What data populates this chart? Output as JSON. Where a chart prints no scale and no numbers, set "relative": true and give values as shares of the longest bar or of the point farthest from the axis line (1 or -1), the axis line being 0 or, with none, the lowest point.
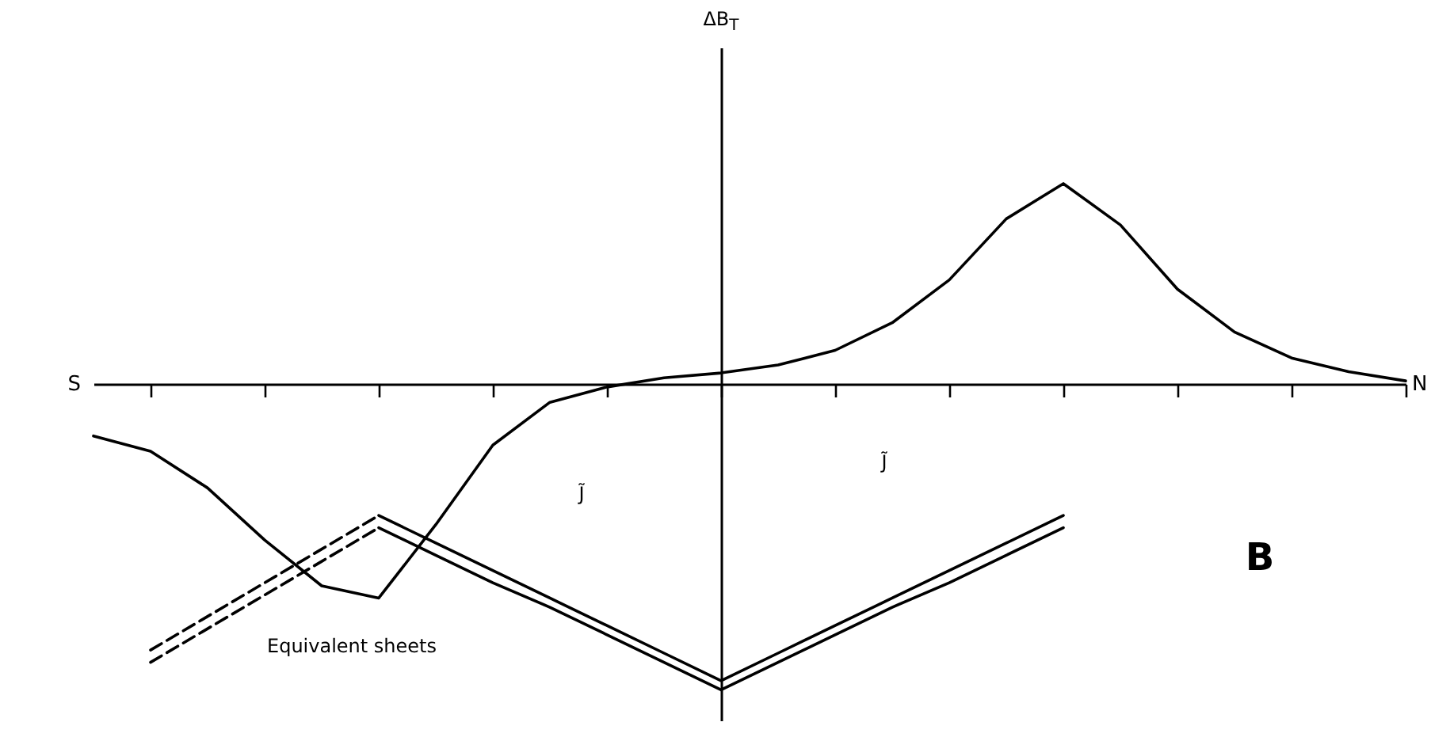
{
  "chart_data": {
    "type": "line",
    "relative": true,
    "categories": [
      null,
      null,
      null,
      null,
      null,
      null,
      null,
      null,
      null,
      null,
      null,
      null,
      null,
      null,
      null,
      null,
      null,
      null,
      null,
      null,
      null,
      null,
      null,
      null
    ],
    "marker": "none",
    "line_style": "solid",
    "grid": false,
    "series": [
      {
        "color": "#000000",
        "values": [
          -0.17,
          -0.22,
          -0.34,
          -0.51,
          -0.66,
          -0.7,
          -0.46,
          -0.2,
          -0.06,
          -0.01,
          0.02,
          0.036,
          0.062,
          0.11,
          0.2,
          0.34,
          0.54,
          0.655,
          0.52,
          0.31,
          0.17,
          0.085,
          0.04,
          0.01
        ]
      },
      {
        "color": "#000000",
        "line_style": "dashed",
        "values": [
          null,
          -0.87,
          -0.76,
          -0.65,
          -0.54,
          -0.43,
          null,
          null,
          null,
          null,
          null,
          null,
          null,
          null,
          null,
          null,
          null,
          null,
          null,
          null,
          null,
          null,
          null,
          null
        ]
      },
      {
        "color": "#000000",
        "line_style": "dashed",
        "values": [
          null,
          -0.91,
          -0.8,
          -0.69,
          -0.58,
          -0.47,
          null,
          null,
          null,
          null,
          null,
          null,
          null,
          null,
          null,
          null,
          null,
          null,
          null,
          null,
          null,
          null,
          null,
          null
        ]
      },
      {
        "color": "#000000",
        "line_style": "solid",
        "values": [
          null,
          null,
          null,
          null,
          null,
          -0.43,
          -0.52,
          -0.61,
          -0.7,
          -0.79,
          -0.88,
          -0.97,
          -0.88,
          -0.79,
          -0.7,
          -0.61,
          -0.52,
          -0.43,
          null,
          null,
          null,
          null,
          null,
          null
        ]
      },
      {
        "color": "#000000",
        "line_style": "solid",
        "values": [
          null,
          null,
          null,
          null,
          null,
          -0.47,
          -0.56,
          -0.65,
          -0.73,
          -0.82,
          -0.91,
          -1,
          -0.91,
          -0.82,
          -0.73,
          -0.65,
          -0.56,
          -0.47,
          null,
          null,
          null,
          null,
          null,
          null
        ]
      }
    ],
    "annotations": [
      "S",
      "N",
      "B",
      "Equivalent sheets",
      "J̃",
      "J̃",
      "ΔB$_{T}$"
    ]
  }
}
